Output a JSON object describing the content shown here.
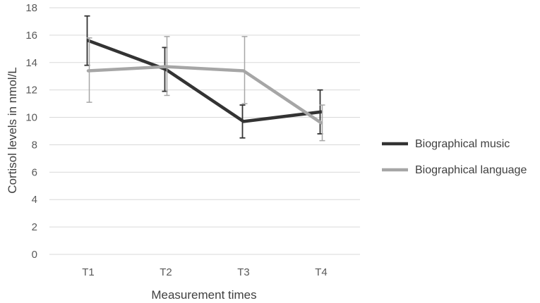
{
  "chart_data": {
    "type": "line",
    "title": "",
    "xlabel": "Measurement times",
    "ylabel": "Cortisol levels in nmol/L",
    "categories": [
      "T1",
      "T2",
      "T3",
      "T4"
    ],
    "ylim": [
      0,
      18
    ],
    "yticks": [
      0,
      2,
      4,
      6,
      8,
      10,
      12,
      14,
      16,
      18
    ],
    "grid": true,
    "legend_position": "right",
    "series": [
      {
        "name": "Biographical music",
        "color": "#333333",
        "values": [
          15.6,
          13.5,
          9.7,
          10.4
        ],
        "error_low": [
          13.8,
          11.9,
          8.5,
          8.8
        ],
        "error_high": [
          17.4,
          15.1,
          10.9,
          12.0
        ]
      },
      {
        "name": "Biographical language",
        "color": "#a6a6a6",
        "values": [
          13.4,
          13.7,
          13.4,
          9.6
        ],
        "error_low": [
          11.1,
          11.6,
          11.0,
          8.3
        ],
        "error_high": [
          15.8,
          15.9,
          15.9,
          10.9
        ]
      }
    ]
  }
}
